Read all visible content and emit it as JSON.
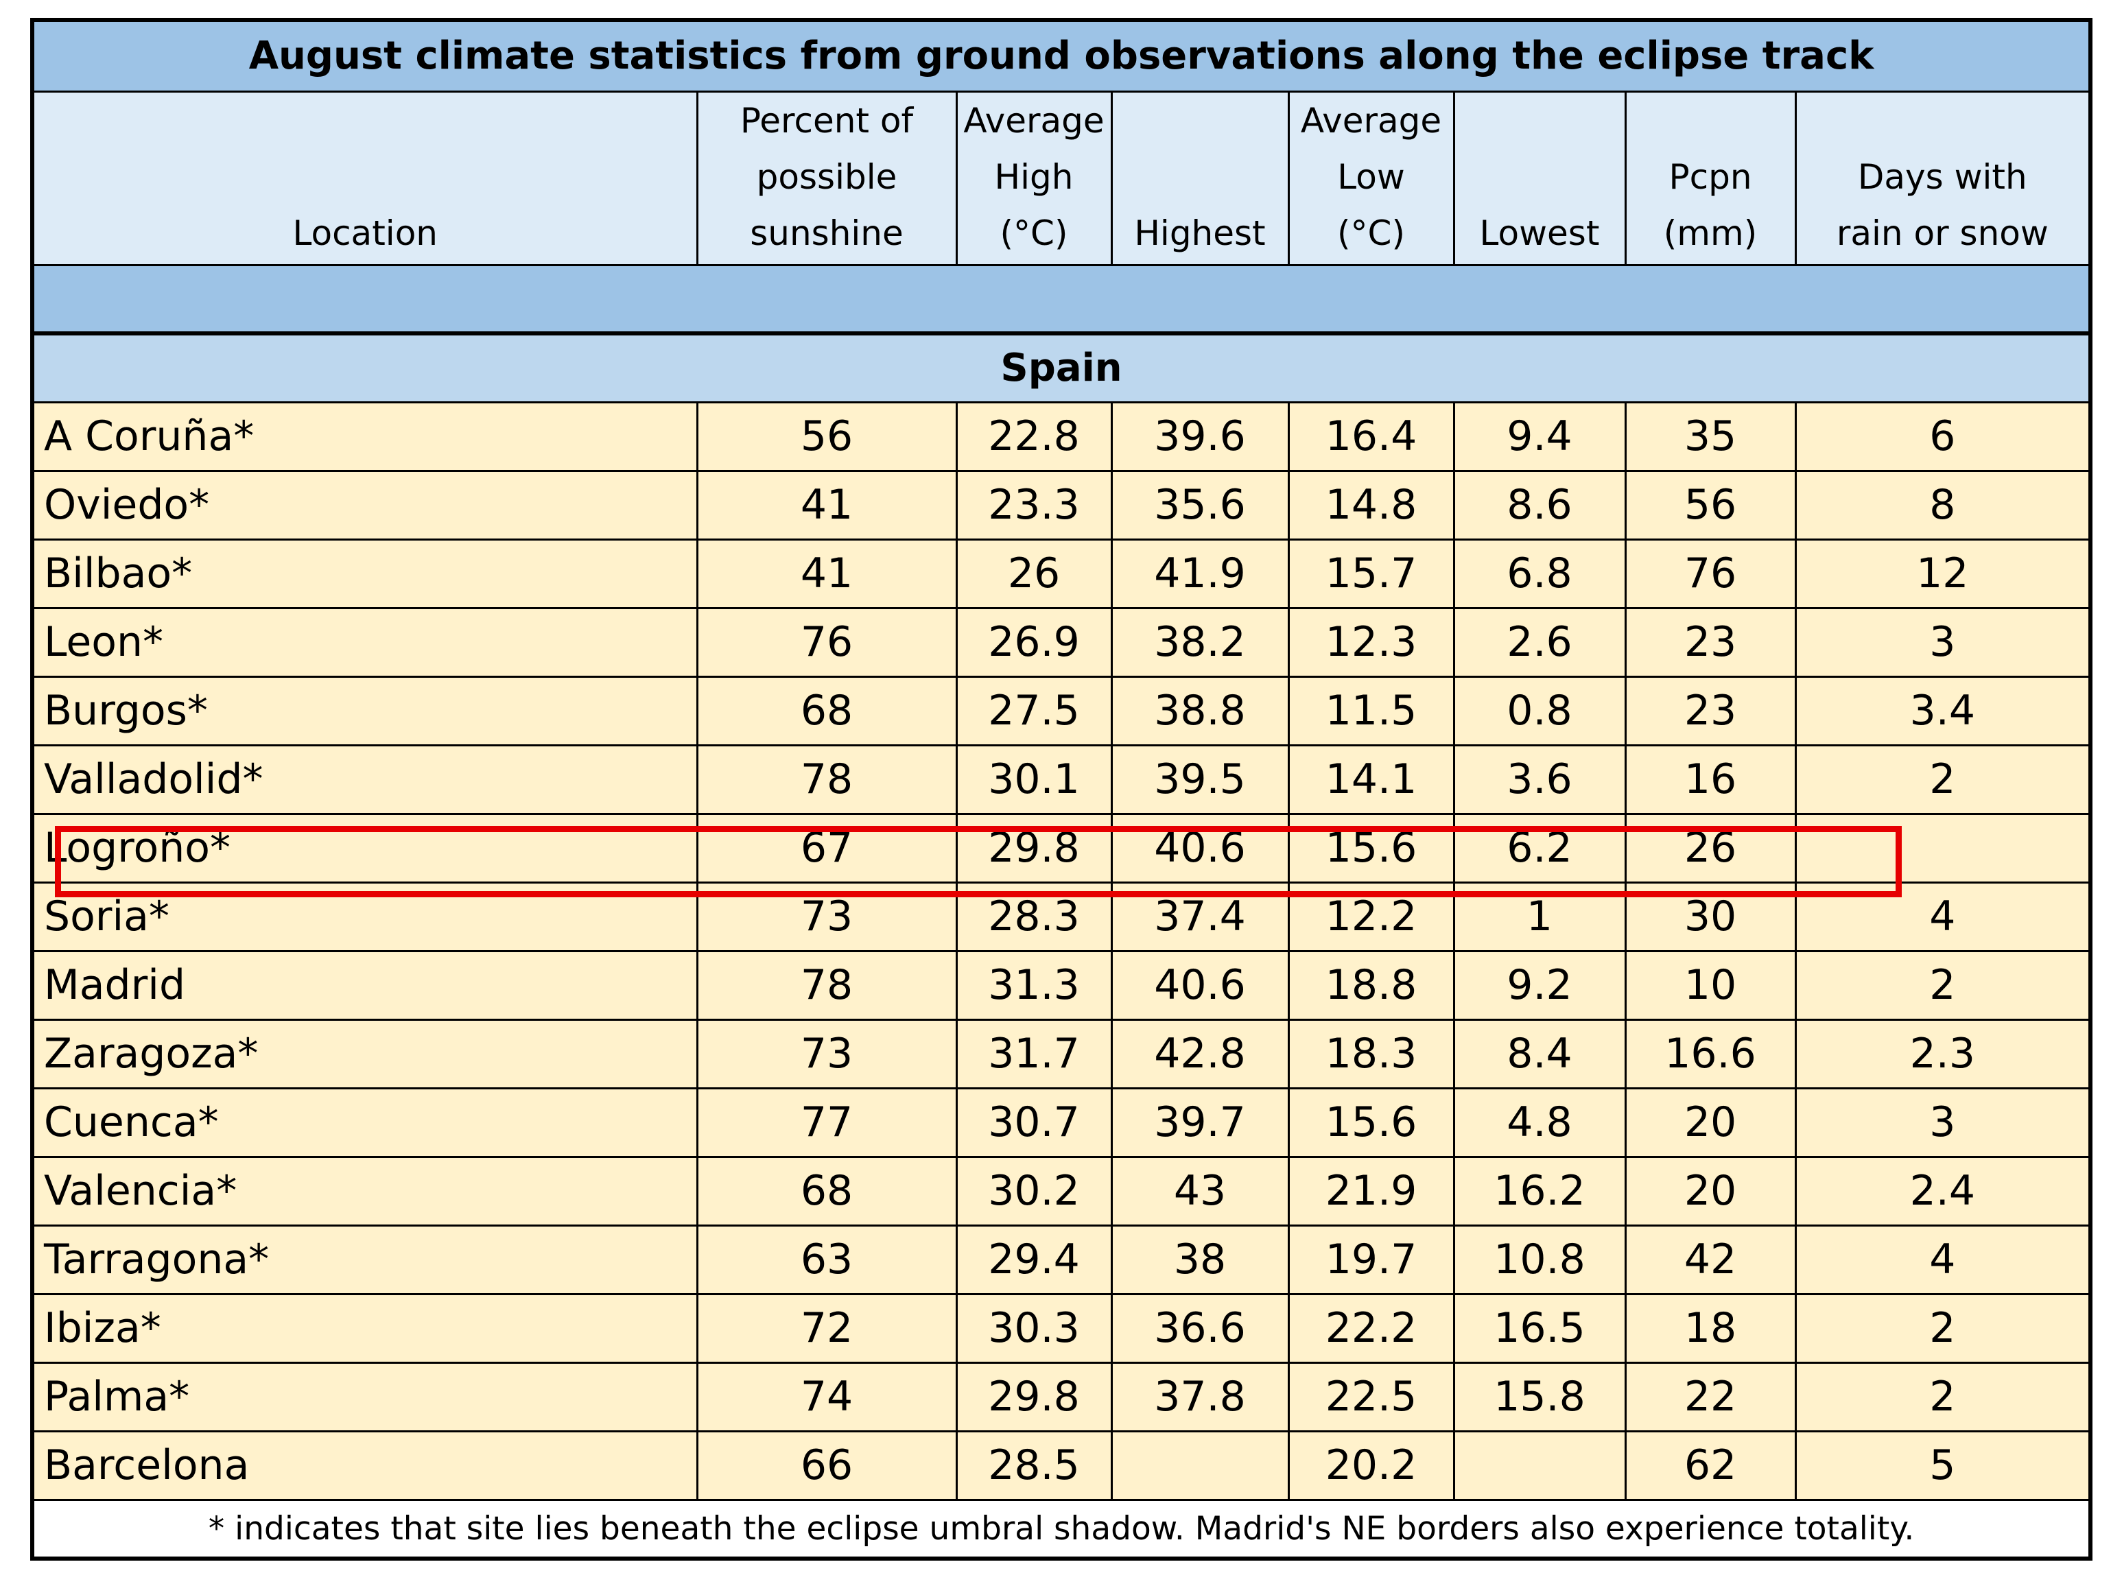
{
  "title": "August climate statistics from ground observations along the eclipse track",
  "columns": [
    {
      "lines": [
        "Location"
      ]
    },
    {
      "lines": [
        "Percent of",
        "possible",
        "sunshine"
      ]
    },
    {
      "lines": [
        "Average",
        "High",
        "(°C)"
      ]
    },
    {
      "lines": [
        "Highest"
      ]
    },
    {
      "lines": [
        "Average",
        "Low",
        "(°C)"
      ]
    },
    {
      "lines": [
        "Lowest"
      ]
    },
    {
      "lines": [
        "Pcpn",
        "(mm)"
      ]
    },
    {
      "lines": [
        "Days with",
        "rain or snow"
      ]
    }
  ],
  "country": "Spain",
  "rows": [
    [
      "A Coruña*",
      "56",
      "22.8",
      "39.6",
      "16.4",
      "9.4",
      "35",
      "6"
    ],
    [
      "Oviedo*",
      "41",
      "23.3",
      "35.6",
      "14.8",
      "8.6",
      "56",
      "8"
    ],
    [
      "Bilbao*",
      "41",
      "26",
      "41.9",
      "15.7",
      "6.8",
      "76",
      "12"
    ],
    [
      "Leon*",
      "76",
      "26.9",
      "38.2",
      "12.3",
      "2.6",
      "23",
      "3"
    ],
    [
      "Burgos*",
      "68",
      "27.5",
      "38.8",
      "11.5",
      "0.8",
      "23",
      "3.4"
    ],
    [
      "Valladolid*",
      "78",
      "30.1",
      "39.5",
      "14.1",
      "3.6",
      "16",
      "2"
    ],
    [
      "Logroño*",
      "67",
      "29.8",
      "40.6",
      "15.6",
      "6.2",
      "26",
      ""
    ],
    [
      "Soria*",
      "73",
      "28.3",
      "37.4",
      "12.2",
      "1",
      "30",
      "4"
    ],
    [
      "Madrid",
      "78",
      "31.3",
      "40.6",
      "18.8",
      "9.2",
      "10",
      "2"
    ],
    [
      "Zaragoza*",
      "73",
      "31.7",
      "42.8",
      "18.3",
      "8.4",
      "16.6",
      "2.3"
    ],
    [
      "Cuenca*",
      "77",
      "30.7",
      "39.7",
      "15.6",
      "4.8",
      "20",
      "3"
    ],
    [
      "Valencia*",
      "68",
      "30.2",
      "43",
      "21.9",
      "16.2",
      "20",
      "2.4"
    ],
    [
      "Tarragona*",
      "63",
      "29.4",
      "38",
      "19.7",
      "10.8",
      "42",
      "4"
    ],
    [
      "Ibiza*",
      "72",
      "30.3",
      "36.6",
      "22.2",
      "16.5",
      "18",
      "2"
    ],
    [
      "Palma*",
      "74",
      "29.8",
      "37.8",
      "22.5",
      "15.8",
      "22",
      "2"
    ],
    [
      "Barcelona",
      "66",
      "28.5",
      "",
      "20.2",
      "",
      "62",
      "5"
    ]
  ],
  "footnote": "* indicates that site lies beneath the eclipse umbral shadow. Madrid's NE borders also experience totality.",
  "colors": {
    "title_bg": "#9dc3e6",
    "header_bg": "#ddebf7",
    "country_bg": "#bdd7ee",
    "data_bg": "#fff2cc",
    "highlight": "#e60000"
  }
}
